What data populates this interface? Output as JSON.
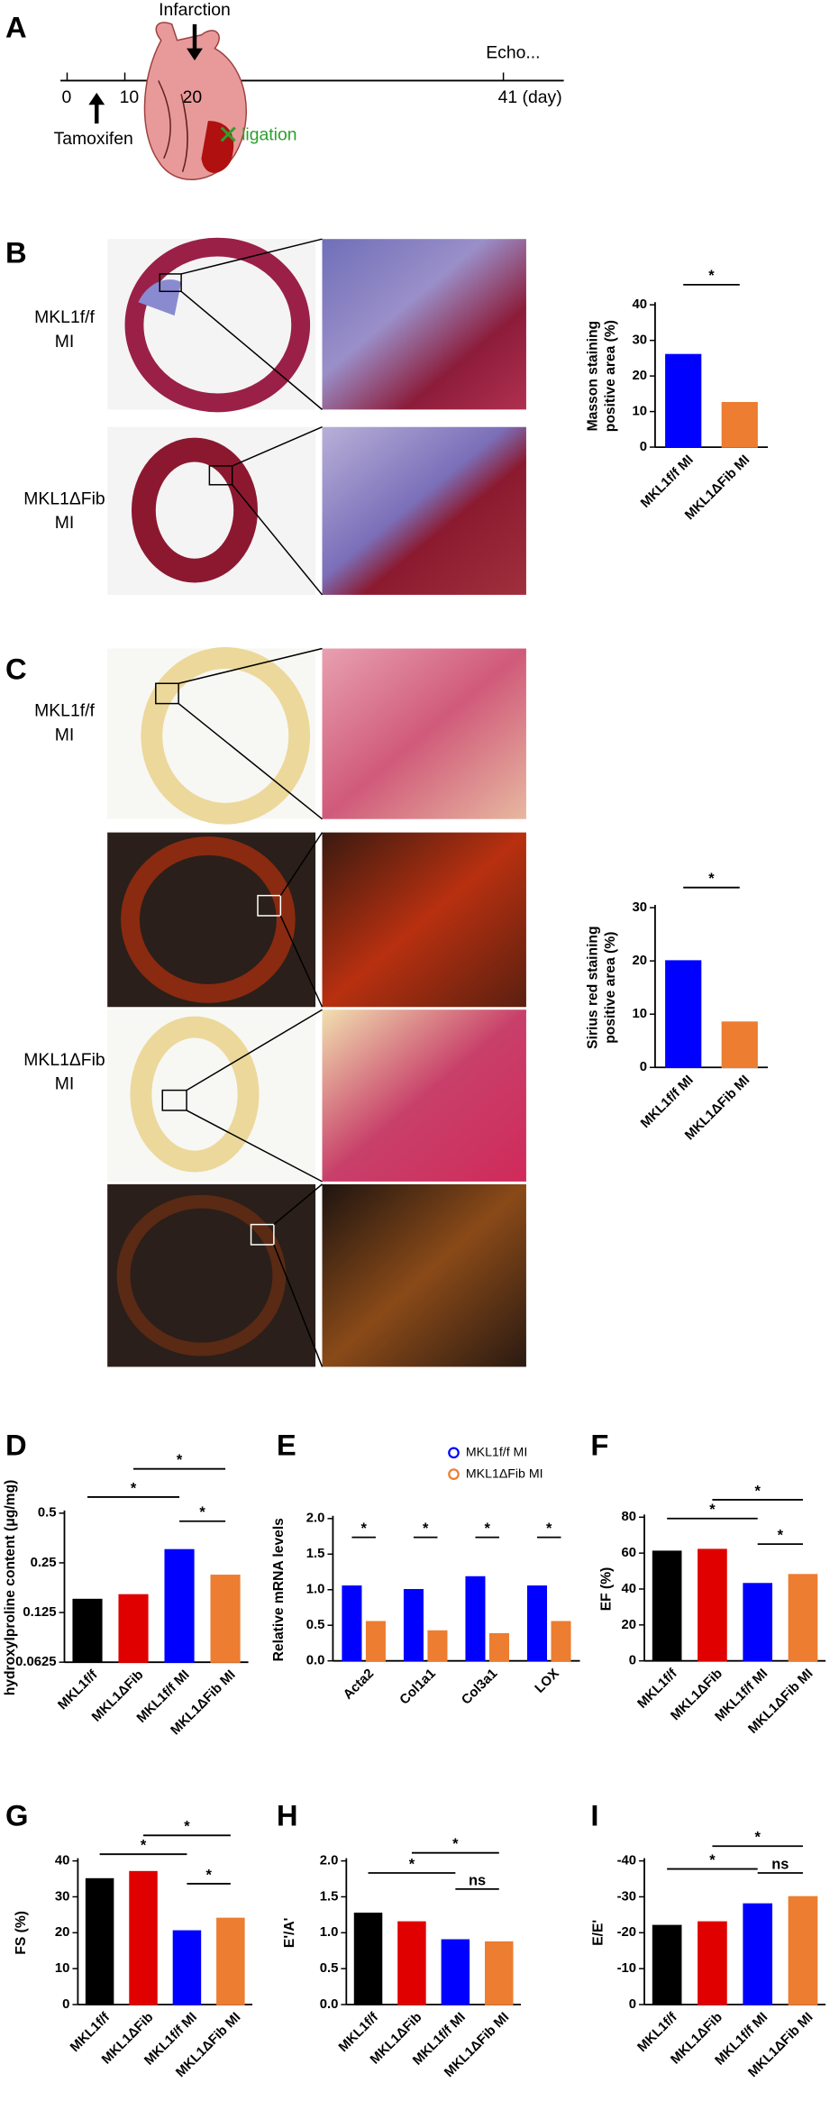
{
  "panels": [
    "A",
    "B",
    "C",
    "D",
    "E",
    "F",
    "G",
    "H",
    "I"
  ],
  "timeline": {
    "ticks": [
      "0",
      "10",
      "20",
      "41 (day)"
    ],
    "events": [
      "Infarction",
      "Tamoxifen",
      "Echo...",
      "ligation"
    ]
  },
  "histology": {
    "b_rows": [
      [
        "MKL1f/f",
        "MI"
      ],
      [
        "MKL1ΔFib",
        "MI"
      ]
    ],
    "c_rows": [
      [
        "MKL1f/f",
        "MI"
      ],
      [
        "MKL1ΔFib",
        "MI"
      ]
    ]
  },
  "chart_data": [
    {
      "type": "bar",
      "ylabel": [
        "Masson staining",
        "positive area (%)"
      ],
      "categories": [
        "MKL1f/f MI",
        "MKL1ΔFib MI"
      ],
      "values": [
        26,
        12.5
      ],
      "colors": [
        "#0000ff",
        "#ed7d31"
      ],
      "ylim": [
        0,
        40
      ],
      "yticks": [
        0,
        10,
        20,
        30,
        40
      ],
      "annotations": [
        "*"
      ]
    },
    {
      "type": "bar",
      "ylabel": [
        "Sirius red staining",
        "positive area (%)"
      ],
      "categories": [
        "MKL1f/f MI",
        "MKL1ΔFib MI"
      ],
      "values": [
        20,
        8.5
      ],
      "colors": [
        "#0000ff",
        "#ed7d31"
      ],
      "ylim": [
        0,
        30
      ],
      "yticks": [
        0,
        10,
        20,
        30
      ],
      "annotations": [
        "*"
      ]
    },
    {
      "type": "bar",
      "ylabel": [
        "hydroxylproline content (μg/mg)"
      ],
      "categories": [
        "MKL1f/f",
        "MKL1ΔFib",
        "MKL1f/f MI",
        "MKL1ΔFib MI"
      ],
      "values": [
        0.15,
        0.16,
        0.3,
        0.21
      ],
      "colors": [
        "#000000",
        "#e00000",
        "#0000ff",
        "#ed7d31"
      ],
      "yscale": "log",
      "ylim": [
        0.0625,
        0.5
      ],
      "yticks": [
        0.0625,
        0.125,
        0.25,
        0.5
      ],
      "annotations": [
        "*",
        "*",
        "*"
      ]
    },
    {
      "type": "grouped_bar",
      "ylabel": [
        "Relative mRNA levels"
      ],
      "categories": [
        "Acta2",
        "Col1a1",
        "Col3a1",
        "LOX"
      ],
      "series": [
        {
          "name": "MKL1f/f MI",
          "color": "#0000ff",
          "values": [
            1.05,
            1.0,
            1.18,
            1.05
          ]
        },
        {
          "name": "MKL1ΔFib MI",
          "color": "#ed7d31",
          "values": [
            0.55,
            0.42,
            0.38,
            0.55
          ]
        }
      ],
      "ylim": [
        0,
        2
      ],
      "yticks": [
        {
          "value": 0,
          "label": "0.0"
        },
        0.5,
        {
          "value": 1,
          "label": "1.0"
        },
        1.5,
        {
          "value": 2,
          "label": "2.0"
        }
      ],
      "annotations": [
        "*",
        "*",
        "*",
        "*"
      ]
    },
    {
      "type": "bar",
      "ylabel": [
        "EF (%)"
      ],
      "categories": [
        "MKL1f/f",
        "MKL1ΔFib",
        "MKL1f/f MI",
        "MKL1ΔFib MI"
      ],
      "values": [
        61,
        62,
        43,
        48
      ],
      "colors": [
        "#000000",
        "#e00000",
        "#0000ff",
        "#ed7d31"
      ],
      "ylim": [
        0,
        80
      ],
      "yticks": [
        0,
        20,
        40,
        60,
        80
      ],
      "annotations": [
        "*",
        "*",
        "*"
      ]
    },
    {
      "type": "bar",
      "ylabel": [
        "FS (%)"
      ],
      "categories": [
        "MKL1f/f",
        "MKL1ΔFib",
        "MKL1f/f MI",
        "MKL1ΔFib MI"
      ],
      "values": [
        35,
        37,
        20.5,
        24
      ],
      "colors": [
        "#000000",
        "#e00000",
        "#0000ff",
        "#ed7d31"
      ],
      "ylim": [
        0,
        40
      ],
      "yticks": [
        0,
        10,
        20,
        30,
        40
      ],
      "annotations": [
        "*",
        "*",
        "*"
      ]
    },
    {
      "type": "bar",
      "ylabel": [
        "E'/A'"
      ],
      "categories": [
        "MKL1f/f",
        "MKL1ΔFib",
        "MKL1f/f MI",
        "MKL1ΔFib MI"
      ],
      "values": [
        1.27,
        1.15,
        0.9,
        0.87
      ],
      "colors": [
        "#000000",
        "#e00000",
        "#0000ff",
        "#ed7d31"
      ],
      "ylim": [
        0,
        2
      ],
      "yticks": [
        {
          "value": 0,
          "label": "0.0"
        },
        0.5,
        {
          "value": 1,
          "label": "1.0"
        },
        1.5,
        {
          "value": 2,
          "label": "2.0"
        }
      ],
      "annotations": [
        "*",
        "*",
        "ns"
      ]
    },
    {
      "type": "bar",
      "ylabel": [
        "E/E'"
      ],
      "categories": [
        "MKL1f/f",
        "MKL1ΔFib",
        "MKL1f/f MI",
        "MKL1ΔFib MI"
      ],
      "values": [
        -22,
        -23,
        -28,
        -30
      ],
      "colors": [
        "#000000",
        "#e00000",
        "#0000ff",
        "#ed7d31"
      ],
      "ylim": [
        0,
        -40
      ],
      "yticks": [
        -40,
        -30,
        -20,
        -10,
        0
      ],
      "annotations": [
        "*",
        "*",
        "ns"
      ]
    }
  ]
}
